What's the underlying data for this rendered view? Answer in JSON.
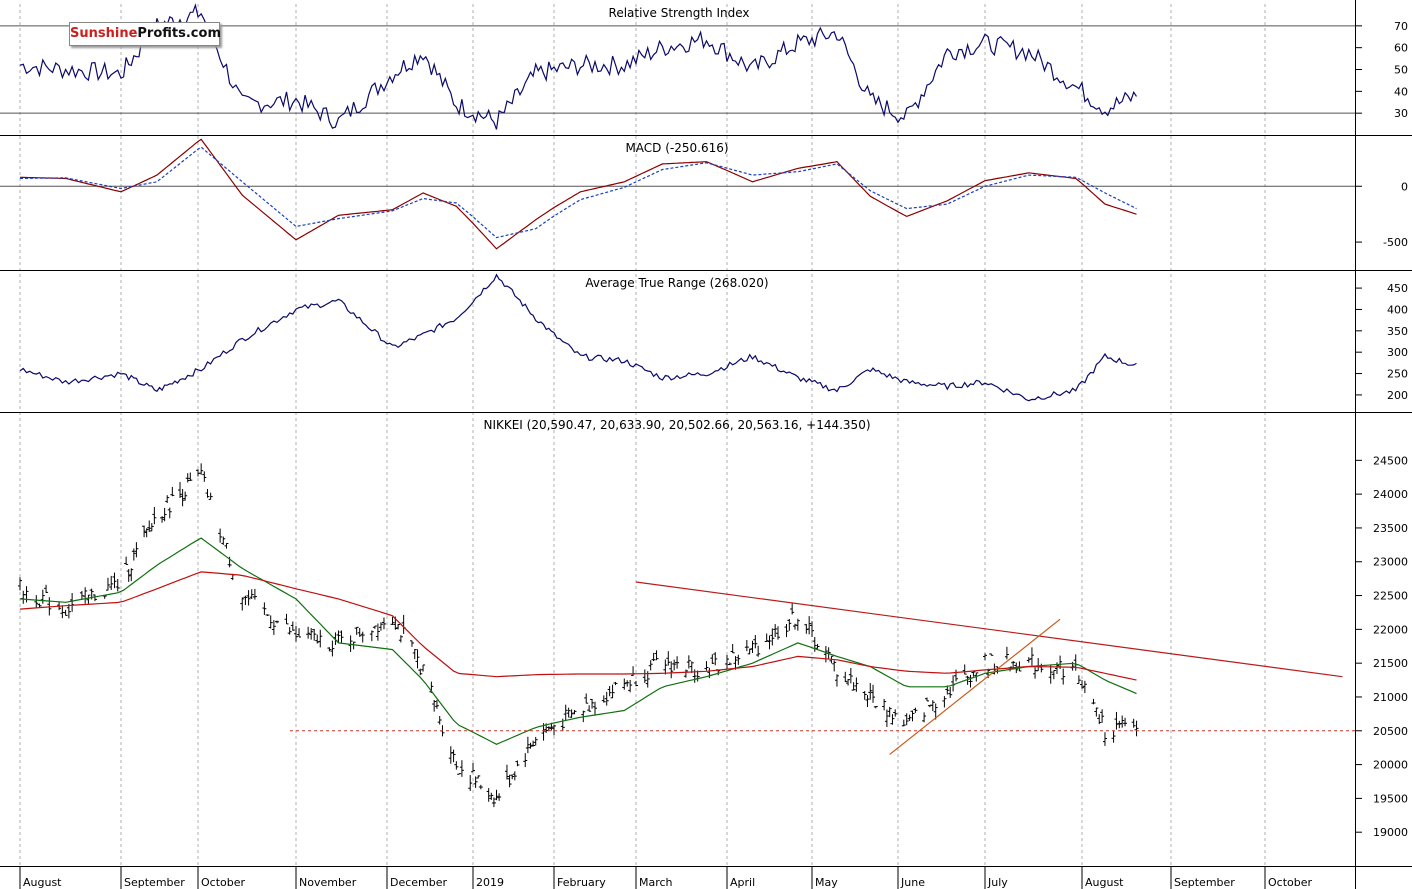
{
  "logo": {
    "part1": "Sunshine",
    "part2": "Profits.com"
  },
  "colors": {
    "rsi": "#0a0a6a",
    "macd": "#8b0000",
    "signal": "#1a3fbf",
    "atr": "#0a0a6a",
    "ma_fast": "#107010",
    "ma_slow": "#c01010",
    "bars": "#000000",
    "trend": "#b81c1c",
    "support": "#c0392b",
    "grid": "#b0b0b0",
    "up_trend": "#c85a17"
  },
  "chart_data": [
    {
      "type": "line",
      "title": "Relative Strength Index",
      "ylim": [
        20,
        80
      ],
      "yticks": [
        30,
        40,
        50,
        60,
        70
      ],
      "reference_lines": [
        30,
        70
      ],
      "x": [
        "Aug 1 2018",
        "Aug 15",
        "Sep 1",
        "Sep 15",
        "Oct 2",
        "Oct 15",
        "Nov 1",
        "Nov 15",
        "Dec 3",
        "Dec 14",
        "Dec 26",
        "Jan 10 2019",
        "Jan 25",
        "Feb 10",
        "Feb 25",
        "Mar 10",
        "Mar 25",
        "Apr 10",
        "Apr 26",
        "May 10",
        "May 22",
        "Jun 4",
        "Jun 18",
        "Jul 1",
        "Jul 15",
        "Jul 30",
        "Aug 9",
        "Aug 20"
      ],
      "series": [
        {
          "values": [
            52,
            50,
            48,
            70,
            76,
            34,
            36,
            26,
            48,
            58,
            34,
            26,
            48,
            52,
            52,
            60,
            64,
            50,
            62,
            67,
            36,
            28,
            58,
            62,
            58,
            42,
            32,
            38
          ]
        }
      ]
    },
    {
      "type": "line",
      "title": "MACD (-250.616)",
      "ylim": [
        -750,
        450
      ],
      "yticks": [
        0,
        -500
      ],
      "reference_lines": [
        0
      ],
      "x": [
        "Aug 1 2018",
        "Aug 15",
        "Sep 1",
        "Sep 15",
        "Oct 2",
        "Oct 15",
        "Nov 1",
        "Nov 15",
        "Dec 3",
        "Dec 14",
        "Dec 26",
        "Jan 10 2019",
        "Jan 25",
        "Feb 10",
        "Feb 25",
        "Mar 10",
        "Mar 25",
        "Apr 10",
        "Apr 26",
        "May 10",
        "May 22",
        "Jun 4",
        "Jun 18",
        "Jul 1",
        "Jul 15",
        "Jul 30",
        "Aug 9",
        "Aug 20"
      ],
      "series": [
        {
          "values": [
            80,
            70,
            -50,
            100,
            420,
            -80,
            -480,
            -260,
            -210,
            -60,
            -180,
            -560,
            -300,
            -50,
            40,
            200,
            220,
            40,
            160,
            220,
            -90,
            -270,
            -130,
            50,
            120,
            70,
            -160,
            -250
          ]
        },
        {
          "values": [
            70,
            75,
            -20,
            40,
            350,
            40,
            -360,
            -290,
            -220,
            -110,
            -150,
            -460,
            -380,
            -120,
            -10,
            150,
            210,
            100,
            130,
            200,
            -40,
            -200,
            -160,
            0,
            100,
            80,
            -60,
            -200
          ]
        }
      ]
    },
    {
      "type": "line",
      "title": "Average True Range (268.020)",
      "ylim": [
        160,
        490
      ],
      "yticks": [
        200,
        250,
        300,
        350,
        400,
        450
      ],
      "x": [
        "Aug 1 2018",
        "Aug 15",
        "Sep 1",
        "Sep 15",
        "Oct 2",
        "Oct 15",
        "Nov 1",
        "Nov 15",
        "Dec 3",
        "Dec 14",
        "Dec 26",
        "Jan 10 2019",
        "Jan 25",
        "Feb 10",
        "Feb 25",
        "Mar 10",
        "Mar 25",
        "Apr 10",
        "Apr 26",
        "May 10",
        "May 22",
        "Jun 4",
        "Jun 18",
        "Jul 1",
        "Jul 15",
        "Jul 30",
        "Aug 9",
        "Aug 20"
      ],
      "series": [
        {
          "values": [
            260,
            230,
            250,
            210,
            260,
            330,
            400,
            420,
            310,
            340,
            380,
            480,
            380,
            290,
            280,
            240,
            250,
            290,
            240,
            210,
            260,
            230,
            220,
            230,
            190,
            210,
            290,
            268
          ]
        }
      ]
    },
    {
      "type": "line",
      "title": "NIKKEI (20,590.47, 20,633.90, 20,502.66, 20,563.16, +144.350)",
      "ylim": [
        18500,
        25200
      ],
      "yticks": [
        19000,
        19500,
        20000,
        20500,
        21000,
        21500,
        22000,
        22500,
        23000,
        23500,
        24000,
        24500
      ],
      "x": [
        "Aug 1 2018",
        "Aug 15",
        "Sep 1",
        "Sep 15",
        "Oct 2",
        "Oct 15",
        "Nov 1",
        "Nov 15",
        "Dec 3",
        "Dec 14",
        "Dec 26",
        "Jan 10 2019",
        "Jan 25",
        "Feb 10",
        "Feb 25",
        "Mar 10",
        "Mar 25",
        "Apr 10",
        "Apr 26",
        "May 10",
        "May 22",
        "Jun 4",
        "Jun 18",
        "Jul 1",
        "Jul 15",
        "Jul 30",
        "Aug 9",
        "Aug 20"
      ],
      "series": [
        {
          "values": [
            22600,
            22300,
            22700,
            23700,
            24270,
            22500,
            21900,
            21800,
            22200,
            21400,
            20000,
            19500,
            20400,
            20800,
            21200,
            21500,
            21400,
            21700,
            22200,
            21400,
            21000,
            20600,
            21100,
            21500,
            21500,
            21400,
            20500,
            20563
          ]
        },
        {
          "values": [
            22450,
            22400,
            22550,
            22950,
            23350,
            22900,
            22450,
            21800,
            21700,
            21250,
            20600,
            20300,
            20550,
            20700,
            20800,
            21150,
            21300,
            21500,
            21800,
            21600,
            21450,
            21150,
            21150,
            21350,
            21450,
            21500,
            21250,
            21050
          ]
        },
        {
          "values": [
            22300,
            22350,
            22400,
            22600,
            22850,
            22800,
            22600,
            22450,
            22200,
            21750,
            21350,
            21300,
            21330,
            21340,
            21340,
            21350,
            21380,
            21450,
            21600,
            21550,
            21450,
            21380,
            21350,
            21400,
            21450,
            21440,
            21350,
            21250
          ]
        }
      ],
      "trendlines": [
        {
          "from": [
            "Mar 1 2019",
            22700
          ],
          "to": [
            "Oct 31 2019",
            21300
          ]
        },
        {
          "from": [
            "May 29 2019",
            20150
          ],
          "to": [
            "Jul 25 2019",
            22150
          ]
        }
      ],
      "support_level": 20500
    }
  ],
  "x_axis_labels": [
    "August",
    "September",
    "October",
    "November",
    "December",
    "2019",
    "February",
    "March",
    "April",
    "May",
    "June",
    "July",
    "August",
    "September",
    "October"
  ]
}
